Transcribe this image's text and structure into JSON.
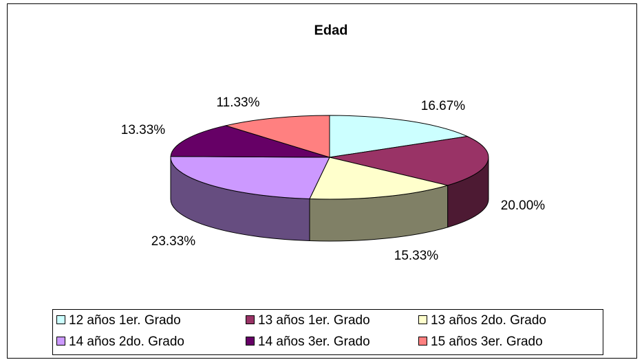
{
  "chart_data": {
    "type": "pie",
    "title": "Edad",
    "categories": [
      "12 años 1er. Grado",
      "13 años 1er. Grado",
      "13 años 2do. Grado",
      "14 años 2do. Grado",
      "14 años 3er. Grado",
      "15 años 3er. Grado"
    ],
    "values": [
      16.67,
      20.0,
      15.33,
      23.33,
      13.33,
      11.33
    ],
    "value_labels": [
      "16.67%",
      "20.00%",
      "15.33%",
      "23.33%",
      "13.33%",
      "11.33%"
    ],
    "colors": [
      "#CCFFFF",
      "#993366",
      "#FFFFCC",
      "#CC99FF",
      "#660066",
      "#FF8080"
    ],
    "legend": "bottom"
  }
}
